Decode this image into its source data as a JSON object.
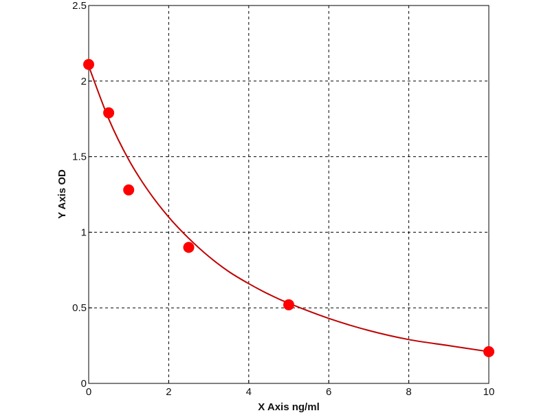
{
  "chart_data": {
    "type": "scatter",
    "title": "",
    "xlabel": "X Axis ng/ml",
    "ylabel": "Y Axis OD",
    "xlim": [
      0,
      10
    ],
    "ylim": [
      0,
      2.5
    ],
    "x_ticks": [
      "0",
      "2",
      "4",
      "6",
      "8",
      "10"
    ],
    "y_ticks": [
      "0",
      "0.5",
      "1",
      "1.5",
      "2",
      "2.5"
    ],
    "grid": true,
    "legend": "none",
    "series": [
      {
        "kind": "points",
        "color": "#ff0000",
        "points": [
          {
            "x": 0,
            "y": 2.11
          },
          {
            "x": 0.5,
            "y": 1.79
          },
          {
            "x": 1,
            "y": 1.28
          },
          {
            "x": 2.5,
            "y": 0.9
          },
          {
            "x": 5,
            "y": 0.52
          },
          {
            "x": 10,
            "y": 0.21
          }
        ]
      },
      {
        "kind": "fit-curve",
        "color": "#c00000",
        "points": [
          {
            "x": 0,
            "y": 2.1
          },
          {
            "x": 0.5,
            "y": 1.75
          },
          {
            "x": 1,
            "y": 1.48
          },
          {
            "x": 1.5,
            "y": 1.27
          },
          {
            "x": 2,
            "y": 1.1
          },
          {
            "x": 2.5,
            "y": 0.96
          },
          {
            "x": 3,
            "y": 0.84
          },
          {
            "x": 3.5,
            "y": 0.74
          },
          {
            "x": 4,
            "y": 0.66
          },
          {
            "x": 4.5,
            "y": 0.59
          },
          {
            "x": 5,
            "y": 0.53
          },
          {
            "x": 6,
            "y": 0.43
          },
          {
            "x": 7,
            "y": 0.35
          },
          {
            "x": 8,
            "y": 0.29
          },
          {
            "x": 9,
            "y": 0.25
          },
          {
            "x": 10,
            "y": 0.21
          }
        ]
      }
    ]
  }
}
